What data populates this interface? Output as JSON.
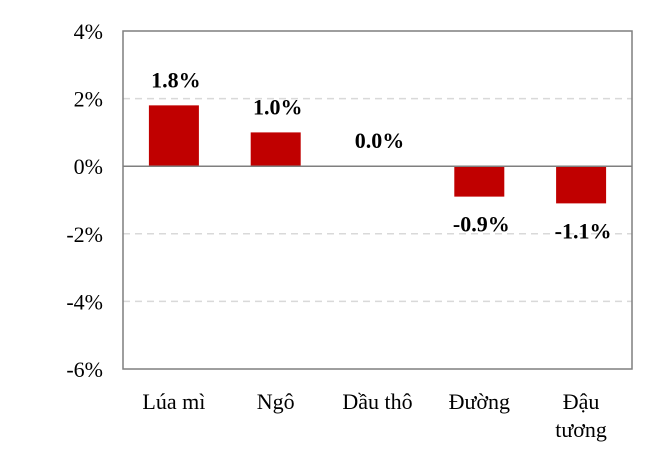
{
  "chart_data": {
    "type": "bar",
    "categories": [
      [
        "Lúa mì"
      ],
      [
        "Ngô"
      ],
      [
        "Dầu thô"
      ],
      [
        "Đường"
      ],
      [
        "Đậu",
        "tương"
      ]
    ],
    "values": [
      1.8,
      1.0,
      0.0,
      -0.9,
      -1.1
    ],
    "data_labels": [
      "1.8%",
      "1.0%",
      "0.0%",
      "-0.9%",
      "-1.1%"
    ],
    "y_ticks": [
      "4%",
      "2%",
      "0%",
      "-2%",
      "-4%",
      "-6%"
    ],
    "y_tick_values": [
      4,
      2,
      0,
      -2,
      -4,
      -6
    ],
    "ylim": [
      -6,
      4
    ],
    "grid": true,
    "bar_color": "#C00000",
    "title": "",
    "xlabel": "",
    "ylabel": ""
  }
}
